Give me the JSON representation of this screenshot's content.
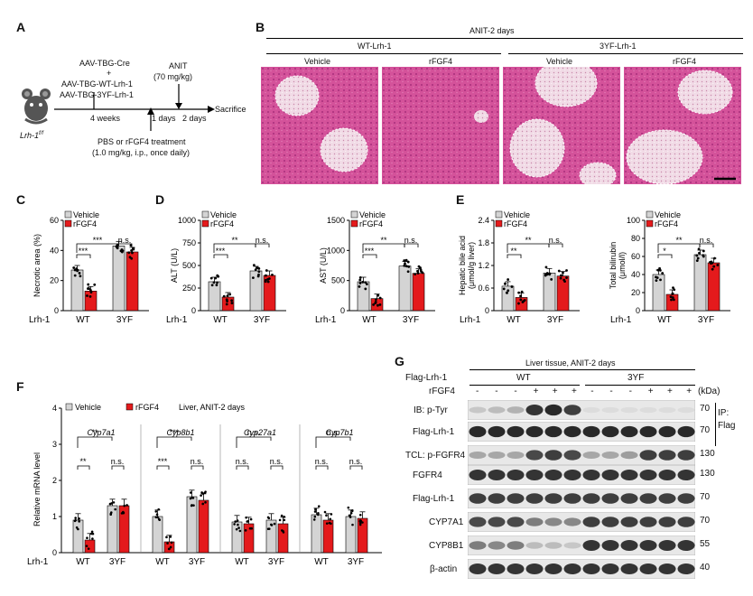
{
  "panels": {
    "A": "A",
    "B": "B",
    "C": "C",
    "D": "D",
    "E": "E",
    "F": "F",
    "G": "G"
  },
  "panelA": {
    "mouse_label": "Lrh-1",
    "mouse_label_sup": "f/f",
    "aav1": "AAV-TBG-Cre",
    "plus": "+",
    "aav2": "AAV-TBG-WT-Lrh-1",
    "aav3": "AAV-TBG-3YF-Lrh-1",
    "weeks": "4 weeks",
    "anit": "ANIT",
    "anit_dose": "(70 mg/kg)",
    "days1": "1 days",
    "days2": "2 days",
    "sacrifice": "Sacrifice",
    "treatment": "PBS or rFGF4 treatment",
    "treatment_dose": "(1.0 mg/kg, i.p., once daily)"
  },
  "panelB": {
    "title": "ANIT-2 days",
    "group1": "WT-Lrh-1",
    "group2": "3YF-Lrh-1",
    "cols": [
      "Vehicle",
      "rFGF4",
      "Vehicle",
      "rFGF4"
    ]
  },
  "legend": {
    "vehicle": "Vehicle",
    "rfgf4": "rFGF4"
  },
  "xaxis": {
    "row_label": "Lrh-1",
    "wt": "WT",
    "yf": "3YF"
  },
  "sig": {
    "three": "***",
    "two": "**",
    "one": "*",
    "ns": "n.s."
  },
  "colors": {
    "vehicle": "#d4d4d4",
    "rfgf4": "#e41a1c",
    "stain_bg": "#d9559a"
  },
  "chart_data": [
    {
      "type": "bar",
      "panel": "C",
      "ylabel": "Necrotic area (%)",
      "ylim": [
        0,
        60
      ],
      "yticks": [
        0,
        20,
        40,
        60
      ],
      "categories": [
        "WT",
        "3YF"
      ],
      "series": [
        {
          "name": "Vehicle",
          "values": [
            27,
            43
          ]
        },
        {
          "name": "rFGF4",
          "values": [
            13,
            39
          ]
        }
      ],
      "annotations": [
        "***",
        "***",
        "n.s."
      ]
    },
    {
      "type": "bar",
      "panel": "D1",
      "ylabel": "ALT (U/L)",
      "ylim": [
        0,
        1000
      ],
      "yticks": [
        0,
        250,
        500,
        750,
        1000
      ],
      "categories": [
        "WT",
        "3YF"
      ],
      "series": [
        {
          "name": "Vehicle",
          "values": [
            320,
            440
          ]
        },
        {
          "name": "rFGF4",
          "values": [
            150,
            390
          ]
        }
      ],
      "annotations": [
        "***",
        "**",
        "n.s."
      ]
    },
    {
      "type": "bar",
      "panel": "D2",
      "ylabel": "AST (U/L)",
      "ylim": [
        0,
        1500
      ],
      "yticks": [
        0,
        500,
        1000,
        1500
      ],
      "categories": [
        "WT",
        "3YF"
      ],
      "series": [
        {
          "name": "Vehicle",
          "values": [
            480,
            740
          ]
        },
        {
          "name": "rFGF4",
          "values": [
            200,
            620
          ]
        }
      ],
      "annotations": [
        "***",
        "**",
        "n.s."
      ]
    },
    {
      "type": "bar",
      "panel": "E1",
      "ylabel": "Hepatic bile acid (μmol/g liver)",
      "ylim": [
        0,
        2.4
      ],
      "yticks": [
        0,
        0.6,
        1.2,
        1.8,
        2.4
      ],
      "categories": [
        "WT",
        "3YF"
      ],
      "series": [
        {
          "name": "Vehicle",
          "values": [
            0.65,
            1.0
          ]
        },
        {
          "name": "rFGF4",
          "values": [
            0.35,
            0.92
          ]
        }
      ],
      "annotations": [
        "**",
        "**",
        "n.s."
      ]
    },
    {
      "type": "bar",
      "panel": "E2",
      "ylabel": "Total bilirubin (μmol/l)",
      "ylim": [
        0,
        100
      ],
      "yticks": [
        0,
        20,
        40,
        60,
        80,
        100
      ],
      "categories": [
        "WT",
        "3YF"
      ],
      "series": [
        {
          "name": "Vehicle",
          "values": [
            40,
            62
          ]
        },
        {
          "name": "rFGF4",
          "values": [
            18,
            53
          ]
        }
      ],
      "annotations": [
        "*",
        "**",
        "n.s."
      ]
    },
    {
      "type": "bar",
      "panel": "F",
      "ylabel": "Relative mRNA level",
      "ylim": [
        0,
        4
      ],
      "yticks": [
        0,
        1,
        2,
        3,
        4
      ],
      "title": "Liver, ANIT-2 days",
      "genes": [
        "Cyp7a1",
        "Cyp8b1",
        "Cyp27a1",
        "Cyp7b1"
      ],
      "categories": [
        "WT",
        "3YF"
      ],
      "groups": [
        {
          "gene": "Cyp7a1",
          "vehicle": [
            0.9,
            1.3
          ],
          "rfgf4": [
            0.35,
            1.3
          ],
          "annotations": [
            "**",
            "**",
            "n.s."
          ]
        },
        {
          "gene": "Cyp8b1",
          "vehicle": [
            1.0,
            1.55
          ],
          "rfgf4": [
            0.3,
            1.45
          ],
          "annotations": [
            "***",
            "***",
            "n.s."
          ]
        },
        {
          "gene": "Cyp27a1",
          "vehicle": [
            0.85,
            0.9
          ],
          "rfgf4": [
            0.8,
            0.8
          ],
          "annotations": [
            "n.s.",
            "n.s.",
            "n.s."
          ]
        },
        {
          "gene": "Cyp7b1",
          "vehicle": [
            1.05,
            1.0
          ],
          "rfgf4": [
            0.9,
            0.95
          ],
          "annotations": [
            "n.s.",
            "n.s.",
            "n.s."
          ]
        }
      ]
    }
  ],
  "panelG": {
    "title": "Liver tissue, ANIT-2 days",
    "flag_label": "Flag-Lrh-1",
    "wt": "WT",
    "yf": "3YF",
    "rfgf4_label": "rFGF4",
    "treatment": [
      "-",
      "-",
      "-",
      "+",
      "+",
      "+",
      "-",
      "-",
      "-",
      "+",
      "+",
      "+"
    ],
    "kda_label": "(kDa)",
    "ip_label": "IP:",
    "ip_target": "Flag",
    "rows": [
      {
        "label": "IB: p-Tyr",
        "kda": "70"
      },
      {
        "label": "Flag-Lrh-1",
        "kda": "70"
      },
      {
        "label": "TCL: p-FGFR4",
        "kda": "130"
      },
      {
        "label": "FGFR4",
        "kda": "130"
      },
      {
        "label": "Flag-Lrh-1",
        "kda": "70"
      },
      {
        "label": "CYP7A1",
        "kda": "70"
      },
      {
        "label": "CYP8B1",
        "kda": "55"
      },
      {
        "label": "β-actin",
        "kda": "40"
      }
    ],
    "intensities": [
      [
        0.15,
        0.2,
        0.25,
        0.85,
        0.9,
        0.8,
        0.05,
        0.05,
        0.05,
        0.05,
        0.05,
        0.05
      ],
      [
        0.9,
        0.9,
        0.9,
        0.9,
        0.9,
        0.9,
        0.9,
        0.9,
        0.9,
        0.9,
        0.9,
        0.9
      ],
      [
        0.3,
        0.3,
        0.3,
        0.75,
        0.8,
        0.75,
        0.3,
        0.3,
        0.35,
        0.8,
        0.8,
        0.8
      ],
      [
        0.85,
        0.85,
        0.85,
        0.85,
        0.85,
        0.85,
        0.85,
        0.85,
        0.85,
        0.85,
        0.85,
        0.85
      ],
      [
        0.8,
        0.8,
        0.8,
        0.8,
        0.8,
        0.8,
        0.8,
        0.8,
        0.8,
        0.8,
        0.8,
        0.8
      ],
      [
        0.75,
        0.75,
        0.75,
        0.5,
        0.45,
        0.45,
        0.8,
        0.8,
        0.8,
        0.8,
        0.8,
        0.8
      ],
      [
        0.5,
        0.45,
        0.5,
        0.2,
        0.2,
        0.15,
        0.85,
        0.85,
        0.85,
        0.85,
        0.85,
        0.85
      ],
      [
        0.85,
        0.85,
        0.85,
        0.85,
        0.85,
        0.85,
        0.85,
        0.85,
        0.85,
        0.85,
        0.85,
        0.85
      ]
    ]
  }
}
